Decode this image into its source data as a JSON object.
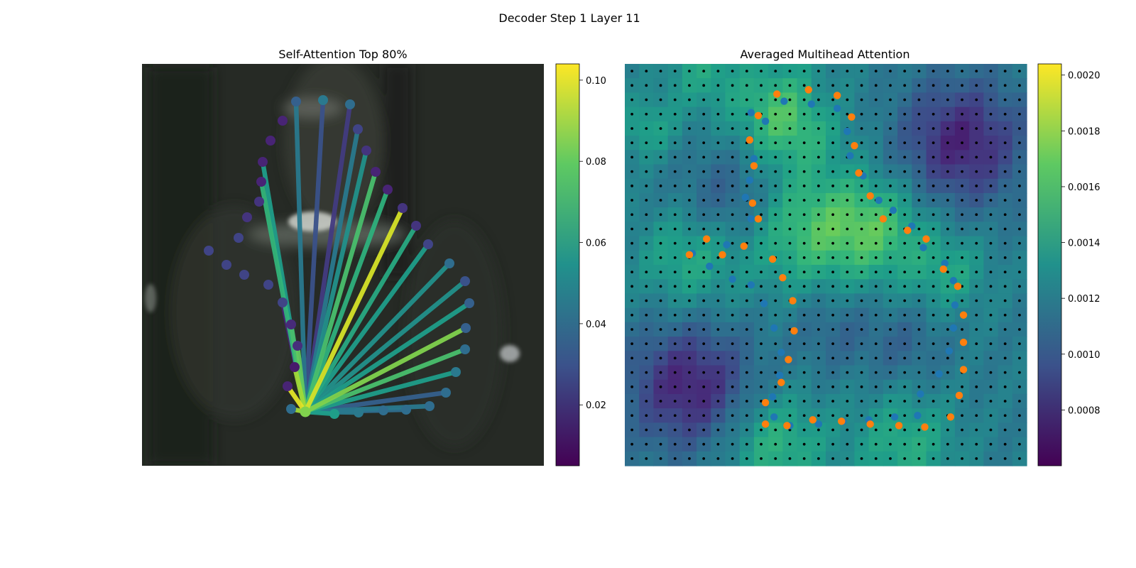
{
  "figure": {
    "suptitle": "Decoder Step 1 Layer 11"
  },
  "chart_data": [
    {
      "type": "scatter",
      "title": "Self-Attention Top 80%",
      "background": "blurred dark photographic image",
      "query_point": {
        "x": 230,
        "y": 490
      },
      "points": [
        {
          "x": 217,
          "y": 53,
          "w": 0.035
        },
        {
          "x": 255,
          "y": 51,
          "w": 0.045
        },
        {
          "x": 293,
          "y": 57,
          "w": 0.04
        },
        {
          "x": 304,
          "y": 92,
          "w": 0.025
        },
        {
          "x": 316,
          "y": 122,
          "w": 0.02
        },
        {
          "x": 329,
          "y": 152,
          "w": 0.015
        },
        {
          "x": 346,
          "y": 177,
          "w": 0.015
        },
        {
          "x": 367,
          "y": 203,
          "w": 0.02
        },
        {
          "x": 386,
          "y": 228,
          "w": 0.02
        },
        {
          "x": 403,
          "y": 254,
          "w": 0.025
        },
        {
          "x": 433,
          "y": 281,
          "w": 0.04
        },
        {
          "x": 455,
          "y": 306,
          "w": 0.03
        },
        {
          "x": 461,
          "y": 337,
          "w": 0.035
        },
        {
          "x": 456,
          "y": 372,
          "w": 0.035
        },
        {
          "x": 455,
          "y": 402,
          "w": 0.04
        },
        {
          "x": 442,
          "y": 434,
          "w": 0.045
        },
        {
          "x": 428,
          "y": 463,
          "w": 0.04
        },
        {
          "x": 405,
          "y": 482,
          "w": 0.04
        },
        {
          "x": 372,
          "y": 487,
          "w": 0.04
        },
        {
          "x": 340,
          "y": 488,
          "w": 0.04
        },
        {
          "x": 305,
          "y": 491,
          "w": 0.045
        },
        {
          "x": 271,
          "y": 493,
          "w": 0.06
        },
        {
          "x": 210,
          "y": 486,
          "w": 0.04
        },
        {
          "x": 205,
          "y": 454,
          "w": 0.015
        },
        {
          "x": 215,
          "y": 427,
          "w": 0.012
        },
        {
          "x": 219,
          "y": 397,
          "w": 0.018
        },
        {
          "x": 210,
          "y": 367,
          "w": 0.017
        },
        {
          "x": 198,
          "y": 336,
          "w": 0.025
        },
        {
          "x": 178,
          "y": 311,
          "w": 0.025
        },
        {
          "x": 144,
          "y": 297,
          "w": 0.025
        },
        {
          "x": 119,
          "y": 283,
          "w": 0.025
        },
        {
          "x": 94,
          "y": 263,
          "w": 0.025
        },
        {
          "x": 136,
          "y": 245,
          "w": 0.025
        },
        {
          "x": 148,
          "y": 216,
          "w": 0.02
        },
        {
          "x": 165,
          "y": 194,
          "w": 0.02
        },
        {
          "x": 168,
          "y": 166,
          "w": 0.015
        },
        {
          "x": 170,
          "y": 138,
          "w": 0.015
        },
        {
          "x": 181,
          "y": 108,
          "w": 0.015
        },
        {
          "x": 198,
          "y": 80,
          "w": 0.015
        }
      ],
      "edges": [
        {
          "to": 53,
          "w": 0.045
        },
        {
          "to": 51,
          "w": 0.03
        },
        {
          "to": 57,
          "w": 0.022
        },
        {
          "to": 92,
          "w": 0.045
        },
        {
          "to": 122,
          "w": 0.055
        },
        {
          "to": 152,
          "w": 0.075
        },
        {
          "to": 177,
          "w": 0.068
        },
        {
          "to": 203,
          "w": 0.098
        },
        {
          "to": 228,
          "w": 0.065
        },
        {
          "to": 254,
          "w": 0.06
        },
        {
          "to": 281,
          "w": 0.055
        },
        {
          "to": 306,
          "w": 0.055
        },
        {
          "to": 337,
          "w": 0.06
        },
        {
          "to": 372,
          "w": 0.085
        },
        {
          "to": 402,
          "w": 0.075
        },
        {
          "to": 434,
          "w": 0.06
        },
        {
          "to": 463,
          "w": 0.035
        },
        {
          "to": 482,
          "w": 0.045
        },
        {
          "to": 487,
          "w": 0.04
        },
        {
          "to": 488,
          "w": 0.04
        },
        {
          "to": 491,
          "w": 0.045
        },
        {
          "to": 493,
          "w": 0.06
        },
        {
          "to": 486,
          "w": 0.09
        },
        {
          "to": 454,
          "w": 0.1
        },
        {
          "to": 427,
          "w": 0.09
        },
        {
          "to": 397,
          "w": 0.08
        },
        {
          "to": 367,
          "w": 0.075
        },
        {
          "to": 336,
          "w": 0.015
        },
        {
          "to": 166,
          "w": 0.07
        },
        {
          "to": 138,
          "w": 0.06
        }
      ],
      "colorbar": {
        "min": 0.005,
        "max": 0.104,
        "ticks": [
          "0.02",
          "0.04",
          "0.06",
          "0.08",
          "0.10"
        ],
        "tick_values": [
          0.02,
          0.04,
          0.06,
          0.08,
          0.1
        ],
        "colormap": "viridis"
      }
    },
    {
      "type": "heatmap",
      "title": "Averaged Multihead Attention",
      "grid_size": 28,
      "blobs": [
        {
          "x": 11,
          "y": 3,
          "a": 1.0,
          "s": 2.5
        },
        {
          "x": 12,
          "y": 11,
          "a": 0.8,
          "s": 3
        },
        {
          "x": 17,
          "y": 11,
          "a": 0.8,
          "s": 2.5
        },
        {
          "x": 10,
          "y": 26,
          "a": 0.7,
          "s": 2.5
        },
        {
          "x": 19,
          "y": 26,
          "a": 0.6,
          "s": 2.5
        },
        {
          "x": 4,
          "y": 13,
          "a": 0.6,
          "s": 2.5
        },
        {
          "x": 22,
          "y": 14,
          "a": 0.5,
          "s": 2
        },
        {
          "x": 1,
          "y": 4,
          "a": 0.5,
          "s": 1.5
        },
        {
          "x": 5,
          "y": 0,
          "a": 0.5,
          "s": 2
        },
        {
          "x": 23,
          "y": 5,
          "a": -1.0,
          "s": 3
        },
        {
          "x": 4,
          "y": 22,
          "a": -1.0,
          "s": 3
        },
        {
          "x": 7,
          "y": 9,
          "a": -0.5,
          "s": 2.5
        },
        {
          "x": 13,
          "y": 2,
          "a": -0.3,
          "s": 1.5
        },
        {
          "x": 19,
          "y": 19,
          "a": -0.3,
          "s": 2
        },
        {
          "x": 14,
          "y": 18,
          "a": -0.3,
          "s": 2
        }
      ],
      "series": [
        {
          "name": "",
          "color": "#1f77b4",
          "points": [
            {
              "x": 4.7,
              "y": 13.2
            },
            {
              "x": 5.9,
              "y": 14.1
            },
            {
              "x": 7.1,
              "y": 12.6
            },
            {
              "x": 7.5,
              "y": 15
            },
            {
              "x": 8.8,
              "y": 10.8
            },
            {
              "x": 8.4,
              "y": 9.3
            },
            {
              "x": 8.7,
              "y": 8.1
            },
            {
              "x": 9,
              "y": 6.6
            },
            {
              "x": 8.8,
              "y": 3.4
            },
            {
              "x": 9.8,
              "y": 4
            },
            {
              "x": 11.1,
              "y": 2.6
            },
            {
              "x": 13,
              "y": 2.8
            },
            {
              "x": 14.8,
              "y": 3.1
            },
            {
              "x": 15.5,
              "y": 4.7
            },
            {
              "x": 15.7,
              "y": 6.4
            },
            {
              "x": 16.6,
              "y": 7.8
            },
            {
              "x": 17.7,
              "y": 9.5
            },
            {
              "x": 18.7,
              "y": 10.2
            },
            {
              "x": 20,
              "y": 11.3
            },
            {
              "x": 20.8,
              "y": 12.8
            },
            {
              "x": 22.3,
              "y": 13.9
            },
            {
              "x": 22.9,
              "y": 15.1
            },
            {
              "x": 23,
              "y": 16.8
            },
            {
              "x": 22.9,
              "y": 18.4
            },
            {
              "x": 22.6,
              "y": 20
            },
            {
              "x": 21.9,
              "y": 21.6
            },
            {
              "x": 20.6,
              "y": 23
            },
            {
              "x": 20.4,
              "y": 24.5
            },
            {
              "x": 18.8,
              "y": 24.6
            },
            {
              "x": 17,
              "y": 24.8
            },
            {
              "x": 15.2,
              "y": 24.9
            },
            {
              "x": 13.5,
              "y": 25.1
            },
            {
              "x": 11.5,
              "y": 25.2
            },
            {
              "x": 10.4,
              "y": 24.6
            },
            {
              "x": 10.3,
              "y": 23.2
            },
            {
              "x": 10.8,
              "y": 21.7
            },
            {
              "x": 10.9,
              "y": 20.1
            },
            {
              "x": 10.4,
              "y": 18.4
            },
            {
              "x": 9.7,
              "y": 16.7
            },
            {
              "x": 8.8,
              "y": 15.4
            }
          ]
        },
        {
          "name": "",
          "color": "#ff7f0e",
          "points": [
            {
              "x": 4.5,
              "y": 13.3
            },
            {
              "x": 5.7,
              "y": 12.2
            },
            {
              "x": 6.8,
              "y": 13.3
            },
            {
              "x": 8.3,
              "y": 12.7
            },
            {
              "x": 9.3,
              "y": 10.8
            },
            {
              "x": 8.9,
              "y": 9.7
            },
            {
              "x": 9,
              "y": 7.1
            },
            {
              "x": 8.7,
              "y": 5.3
            },
            {
              "x": 9.3,
              "y": 3.6
            },
            {
              "x": 10.6,
              "y": 2.1
            },
            {
              "x": 12.8,
              "y": 1.8
            },
            {
              "x": 14.8,
              "y": 2.2
            },
            {
              "x": 15.8,
              "y": 3.7
            },
            {
              "x": 16,
              "y": 5.7
            },
            {
              "x": 16.3,
              "y": 7.6
            },
            {
              "x": 17.1,
              "y": 9.2
            },
            {
              "x": 18,
              "y": 10.8
            },
            {
              "x": 19.7,
              "y": 11.6
            },
            {
              "x": 21,
              "y": 12.2
            },
            {
              "x": 22.2,
              "y": 14.3
            },
            {
              "x": 23.2,
              "y": 15.5
            },
            {
              "x": 23.6,
              "y": 17.5
            },
            {
              "x": 23.6,
              "y": 19.4
            },
            {
              "x": 23.6,
              "y": 21.3
            },
            {
              "x": 23.3,
              "y": 23.1
            },
            {
              "x": 22.7,
              "y": 24.6
            },
            {
              "x": 20.9,
              "y": 25.3
            },
            {
              "x": 19.1,
              "y": 25.2
            },
            {
              "x": 17.1,
              "y": 25.1
            },
            {
              "x": 15.1,
              "y": 24.9
            },
            {
              "x": 13.1,
              "y": 24.8
            },
            {
              "x": 11.3,
              "y": 25.2
            },
            {
              "x": 9.8,
              "y": 25.1
            },
            {
              "x": 9.8,
              "y": 23.6
            },
            {
              "x": 10.9,
              "y": 22.2
            },
            {
              "x": 11.4,
              "y": 20.6
            },
            {
              "x": 11.8,
              "y": 18.6
            },
            {
              "x": 11.7,
              "y": 16.5
            },
            {
              "x": 11,
              "y": 14.9
            },
            {
              "x": 10.3,
              "y": 13.6
            }
          ]
        }
      ],
      "colorbar": {
        "min": 0.0006,
        "max": 0.00204,
        "ticks": [
          "0.0008",
          "0.0010",
          "0.0012",
          "0.0014",
          "0.0016",
          "0.0018",
          "0.0020"
        ],
        "tick_values": [
          0.0008,
          0.001,
          0.0012,
          0.0014,
          0.0016,
          0.0018,
          0.002
        ],
        "colormap": "viridis"
      }
    }
  ]
}
